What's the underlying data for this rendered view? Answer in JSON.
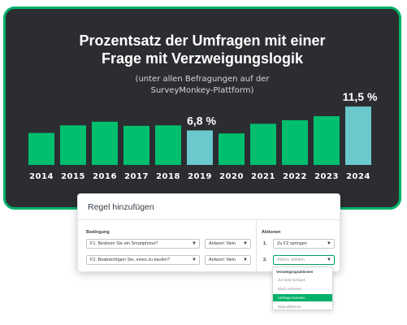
{
  "chart_data": {
    "type": "bar",
    "title": "Prozentsatz der Umfragen mit einer\nFrage mit Verzweigungslogik",
    "subtitle": "(unter allen Befragungen auf der\nSurveyMonkey-Plattform)",
    "categories": [
      "2014",
      "2015",
      "2016",
      "2017",
      "2018",
      "2019",
      "2020",
      "2021",
      "2022",
      "2023",
      "2024"
    ],
    "values": [
      6.3,
      7.8,
      8.5,
      7.7,
      7.8,
      6.8,
      6.2,
      8.1,
      8.8,
      9.6,
      11.5
    ],
    "highlighted": [
      "2019",
      "2024"
    ],
    "data_labels": {
      "2019": "6,8 %",
      "2024": "11,5 %"
    },
    "xlabel": "",
    "ylabel": "",
    "ylim": [
      0,
      12
    ],
    "grid": false,
    "colors": {
      "bar": "#00bf6f",
      "highlight": "#6bc8cd",
      "background": "#2b2d31",
      "border": "#00b06a"
    }
  },
  "dialog": {
    "title": "Regel hinzufügen",
    "condition_header": "Bedingung",
    "actions_header": "Aktionen",
    "conditions": [
      {
        "question": "F1. Besitzen Sie ein Smartphone?",
        "answer": "Antwort: Nein"
      },
      {
        "question": "F2. Beabsichtigen Sie, eines zu kaufen?",
        "answer": "Antwort: Nein"
      }
    ],
    "actions": [
      {
        "number": "1.",
        "value": "Zu F2 springen"
      },
      {
        "number": "2.",
        "value": "Aktion wählen"
      }
    ],
    "dropdown": {
      "header": "Verzweigungsaktionen",
      "options": [
        "Zur Seite springen",
        "Block verlassen",
        "Umfrage beenden",
        "Disqualifizieren"
      ],
      "selected": "Umfrage beenden"
    },
    "accent_color": "#00b06a"
  }
}
